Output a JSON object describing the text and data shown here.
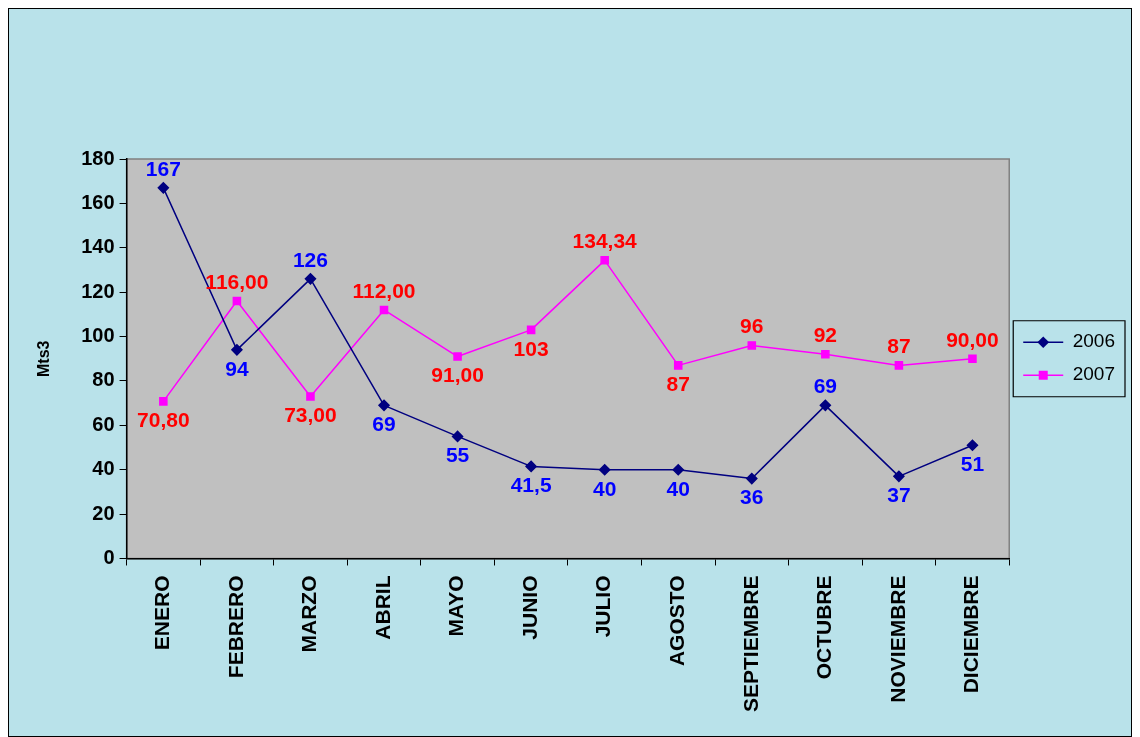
{
  "chart_data": {
    "type": "line",
    "ylabel": "Mts3",
    "categories": [
      "ENERO",
      "FEBRERO",
      "MARZO",
      "ABRIL",
      "MAYO",
      "JUNIO",
      "JULIO",
      "AGOSTO",
      "SEPTIEMBRE",
      "OCTUBRE",
      "NOVIEMBRE",
      "DICIEMBRE"
    ],
    "ylim": [
      0,
      180
    ],
    "yticks": [
      0,
      20,
      40,
      60,
      80,
      100,
      120,
      140,
      160,
      180
    ],
    "legend": "right",
    "line_style": "solid",
    "series": [
      {
        "name": "2006",
        "color": "#000080",
        "marker": "diamond",
        "values": [
          167,
          94,
          126,
          69,
          55,
          41.5,
          40,
          40,
          36,
          69,
          37,
          51
        ],
        "value_labels": [
          "167",
          "94",
          "126",
          "69",
          "55",
          "41,5",
          "40",
          "40",
          "36",
          "69",
          "37",
          "51"
        ]
      },
      {
        "name": "2007",
        "color": "#ff00ff",
        "marker": "square",
        "values": [
          70.8,
          116,
          73,
          112,
          91,
          103,
          134.34,
          87,
          96,
          92,
          87,
          90
        ],
        "value_labels": [
          "70,80",
          "116,00",
          "73,00",
          "112,00",
          "91,00",
          "103",
          "134,34",
          "87",
          "96",
          "92",
          "87",
          "90,00"
        ]
      }
    ]
  }
}
